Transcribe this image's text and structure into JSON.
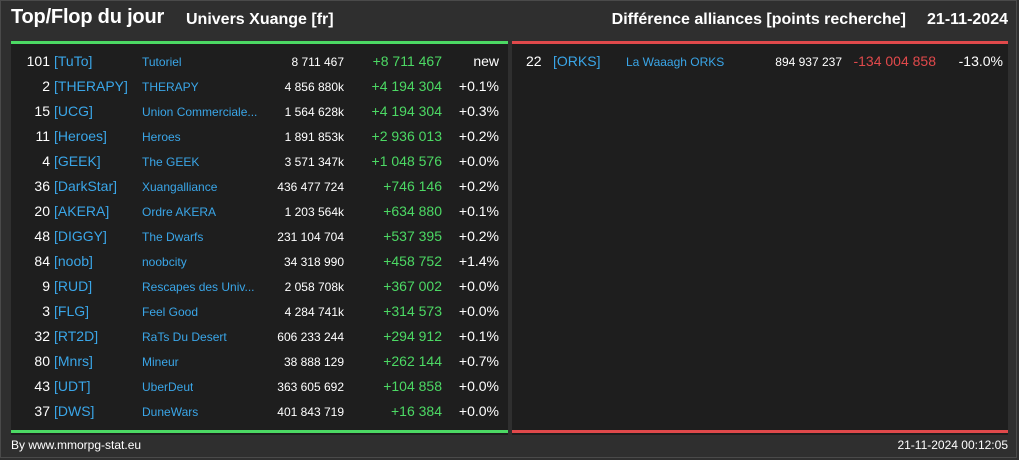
{
  "header": {
    "title": "Top/Flop du jour",
    "universe": "Univers Xuange [fr]",
    "report": "Différence alliances [points recherche]",
    "date": "21-11-2024"
  },
  "colors": {
    "positive": "#4cd964",
    "negative": "#e0494b",
    "link": "#3aa6e8",
    "background": "#2f2f2f",
    "panel": "#1e1e1e"
  },
  "top": [
    {
      "rank": "101",
      "tag": "[TuTo]",
      "name": "Tutoriel",
      "points": "8 711 467",
      "diff": "+8 711 467",
      "pct": "new"
    },
    {
      "rank": "2",
      "tag": "[THERAPY]",
      "name": "THERAPY",
      "points": "4 856 880k",
      "diff": "+4 194 304",
      "pct": "+0.1%"
    },
    {
      "rank": "15",
      "tag": "[UCG]",
      "name": "Union Commerciale...",
      "points": "1 564 628k",
      "diff": "+4 194 304",
      "pct": "+0.3%"
    },
    {
      "rank": "11",
      "tag": "[Heroes]",
      "name": "Heroes",
      "points": "1 891 853k",
      "diff": "+2 936 013",
      "pct": "+0.2%"
    },
    {
      "rank": "4",
      "tag": "[GEEK]",
      "name": "The GEEK",
      "points": "3 571 347k",
      "diff": "+1 048 576",
      "pct": "+0.0%"
    },
    {
      "rank": "36",
      "tag": "[DarkStar]",
      "name": "Xuangalliance",
      "points": "436 477 724",
      "diff": "+746 146",
      "pct": "+0.2%"
    },
    {
      "rank": "20",
      "tag": "[AKERA]",
      "name": "Ordre AKERA",
      "points": "1 203 564k",
      "diff": "+634 880",
      "pct": "+0.1%"
    },
    {
      "rank": "48",
      "tag": "[DIGGY]",
      "name": "The Dwarfs",
      "points": "231 104 704",
      "diff": "+537 395",
      "pct": "+0.2%"
    },
    {
      "rank": "84",
      "tag": "[noob]",
      "name": "noobcity",
      "points": "34 318 990",
      "diff": "+458 752",
      "pct": "+1.4%"
    },
    {
      "rank": "9",
      "tag": "[RUD]",
      "name": "Rescapes des Univ...",
      "points": "2 058 708k",
      "diff": "+367 002",
      "pct": "+0.0%"
    },
    {
      "rank": "3",
      "tag": "[FLG]",
      "name": "Feel Good",
      "points": "4 284 741k",
      "diff": "+314 573",
      "pct": "+0.0%"
    },
    {
      "rank": "32",
      "tag": "[RT2D]",
      "name": "RaTs Du Desert",
      "points": "606 233 244",
      "diff": "+294 912",
      "pct": "+0.1%"
    },
    {
      "rank": "80",
      "tag": "[Mnrs]",
      "name": "Mineur",
      "points": "38 888 129",
      "diff": "+262 144",
      "pct": "+0.7%"
    },
    {
      "rank": "43",
      "tag": "[UDT]",
      "name": "UberDeut",
      "points": "363 605 692",
      "diff": "+104 858",
      "pct": "+0.0%"
    },
    {
      "rank": "37",
      "tag": "[DWS]",
      "name": "DuneWars",
      "points": "401 843 719",
      "diff": "+16 384",
      "pct": "+0.0%"
    }
  ],
  "flop": [
    {
      "rank": "22",
      "tag": "[ORKS]",
      "name": "La Waaagh ORKS",
      "points": "894 937 237",
      "diff": "-134 004 858",
      "pct": "-13.0%"
    }
  ],
  "footer": {
    "source": "By www.mmorpg-stat.eu",
    "timestamp": "21-11-2024 00:12:05"
  }
}
